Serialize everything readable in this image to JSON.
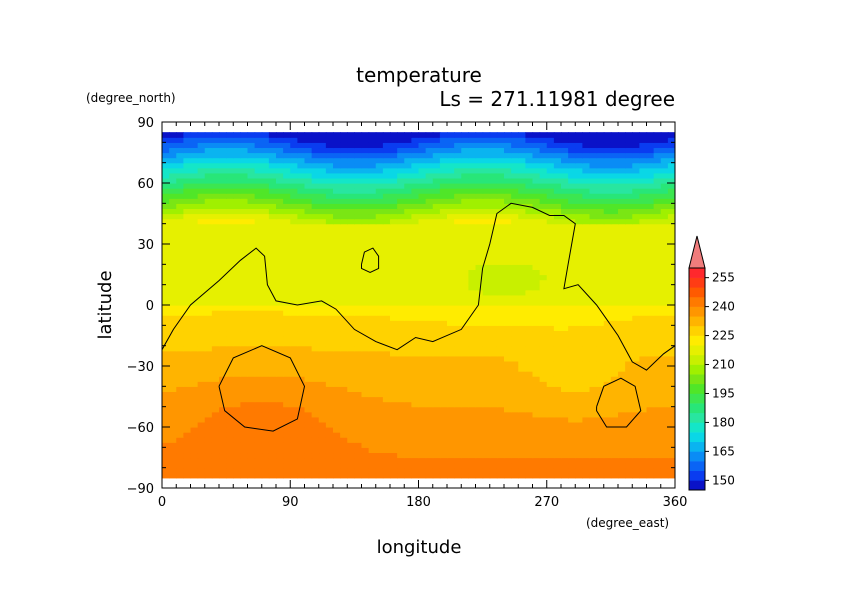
{
  "chart_data": {
    "type": "heatmap",
    "title": "temperature",
    "subtitle": "Ls = 271.11981 degree",
    "xlabel": "longitude",
    "ylabel": "latitude",
    "xunits": "(degree_east)",
    "yunits": "(degree_north)",
    "xlim": [
      0,
      360
    ],
    "ylim": [
      -90,
      90
    ],
    "xticks": [
      {
        "value": 0,
        "label": "0"
      },
      {
        "value": 90,
        "label": "90"
      },
      {
        "value": 180,
        "label": "180"
      },
      {
        "value": 270,
        "label": "270"
      },
      {
        "value": 360,
        "label": "360"
      }
    ],
    "yticks": [
      {
        "value": 90,
        "label": "90"
      },
      {
        "value": 60,
        "label": "60"
      },
      {
        "value": 30,
        "label": "30"
      },
      {
        "value": 0,
        "label": "0"
      },
      {
        "value": -30,
        "label": "−30"
      },
      {
        "value": -60,
        "label": "−60"
      },
      {
        "value": -90,
        "label": "−90"
      }
    ],
    "data_lat_range": [
      -85,
      85
    ],
    "colorbar": {
      "levels": [
        145,
        150,
        155,
        160,
        165,
        170,
        175,
        180,
        185,
        190,
        195,
        200,
        205,
        210,
        215,
        220,
        225,
        230,
        235,
        240,
        245,
        250,
        255,
        260
      ],
      "labels": [
        "150",
        "165",
        "180",
        "195",
        "210",
        "225",
        "240",
        "255"
      ],
      "label_values": [
        150,
        165,
        180,
        195,
        210,
        225,
        240,
        255
      ],
      "colors": [
        "#0a12c8",
        "#0a3cf0",
        "#0a64f5",
        "#0a8cf5",
        "#0ab4f0",
        "#0ad7e6",
        "#14e6c8",
        "#28e6a0",
        "#28e678",
        "#3ce650",
        "#50e628",
        "#7ae614",
        "#a0f000",
        "#c8f000",
        "#e6f000",
        "#ffec00",
        "#ffd200",
        "#ffb400",
        "#ff9600",
        "#ff7a00",
        "#ff5a00",
        "#ff3c14",
        "#ff282d"
      ],
      "extend_color": "#f07c7c"
    },
    "contour_color": "#000000"
  }
}
